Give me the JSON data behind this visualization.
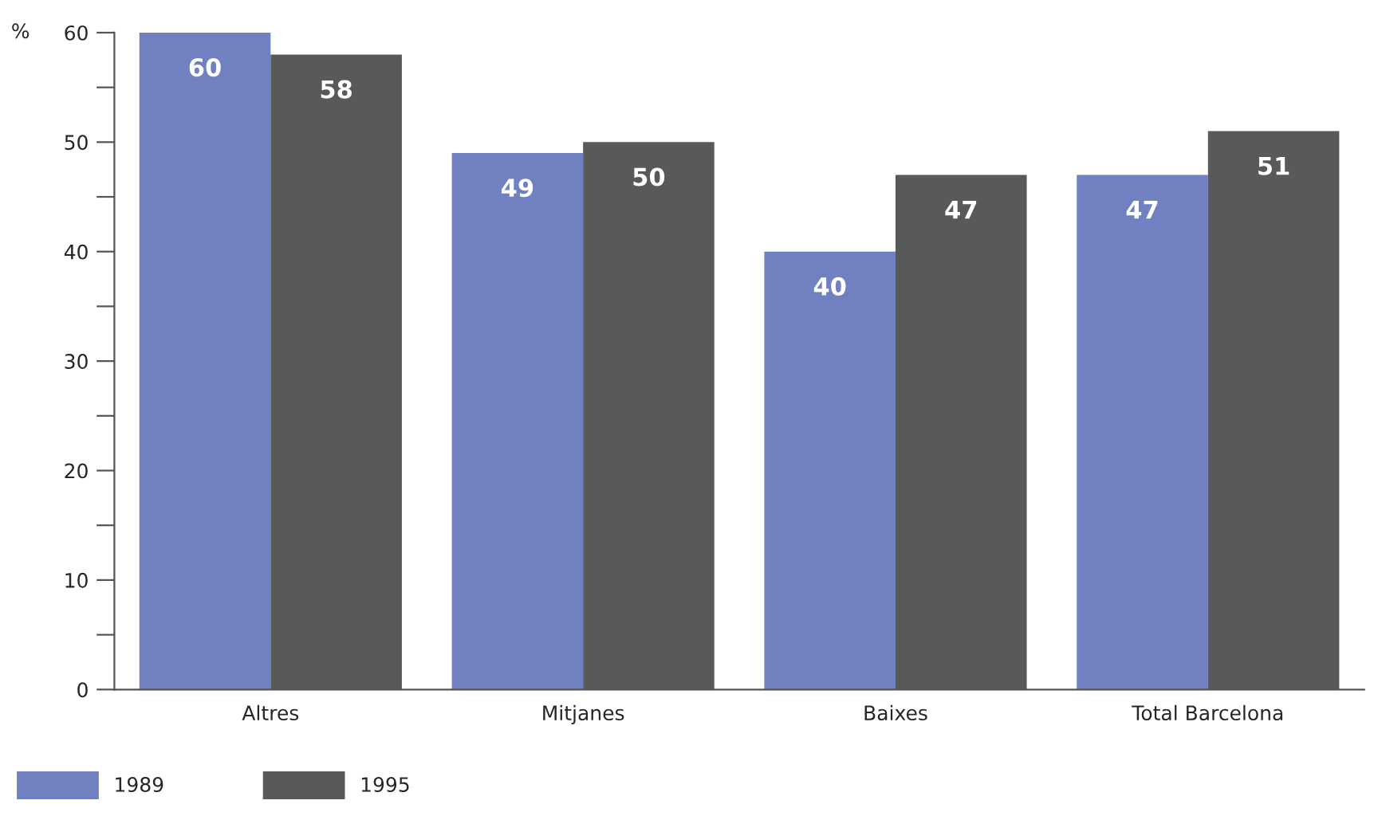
{
  "chart_data": {
    "type": "bar",
    "ylabel": "%",
    "categories": [
      "Altres",
      "Mitjanes",
      "Baixes",
      "Total Barcelona"
    ],
    "series": [
      {
        "name": "1989",
        "color": "#7080c0",
        "values": [
          60,
          49,
          40,
          47
        ]
      },
      {
        "name": "1995",
        "color": "#58595b",
        "values": [
          58,
          50,
          47,
          51
        ]
      }
    ],
    "ylim": [
      0,
      60
    ],
    "yticks": [
      0,
      {
        "value": 5,
        "label": null
      },
      10,
      {
        "value": 15,
        "label": null
      },
      20,
      {
        "value": 25,
        "label": null
      },
      30,
      {
        "value": 35,
        "label": null
      },
      40,
      {
        "value": 45,
        "label": null
      },
      50,
      {
        "value": 55,
        "label": null
      },
      60
    ],
    "data_labels": true,
    "grid": false,
    "legend": "bottom left"
  }
}
